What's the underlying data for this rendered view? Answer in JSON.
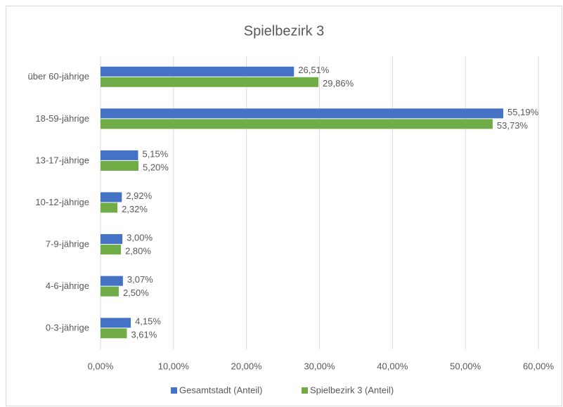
{
  "chart_data": {
    "type": "bar",
    "orientation": "horizontal",
    "title": "Spielbezirk 3",
    "categories": [
      "über 60-jährige",
      "18-59-jährige",
      "13-17-jährige",
      "10-12-jährige",
      "7-9-jährige",
      "4-6-jährige",
      "0-3-jährige"
    ],
    "series": [
      {
        "name": "Gesamtstadt (Anteil)",
        "color": "#4472c4",
        "values": [
          26.51,
          55.19,
          5.15,
          2.92,
          3.0,
          3.07,
          4.15
        ],
        "value_labels": [
          "26,51%",
          "55,19%",
          "5,15%",
          "2,92%",
          "3,00%",
          "3,07%",
          "4,15%"
        ]
      },
      {
        "name": "Spielbezirk 3 (Anteil)",
        "color": "#70ad47",
        "values": [
          29.86,
          53.73,
          5.2,
          2.32,
          2.8,
          2.5,
          3.61
        ],
        "value_labels": [
          "29,86%",
          "53,73%",
          "5,20%",
          "2,32%",
          "2,80%",
          "2,50%",
          "3,61%"
        ]
      }
    ],
    "xlim": [
      0,
      60
    ],
    "xticks": [
      {
        "value": 0,
        "label": "0,00%"
      },
      {
        "value": 10,
        "label": "10,00%"
      },
      {
        "value": 20,
        "label": "20,00%"
      },
      {
        "value": 30,
        "label": "30,00%"
      },
      {
        "value": 40,
        "label": "40,00%"
      },
      {
        "value": 50,
        "label": "50,00%"
      },
      {
        "value": 60,
        "label": "60,00%"
      }
    ],
    "grid": true,
    "legend": "bottom"
  }
}
